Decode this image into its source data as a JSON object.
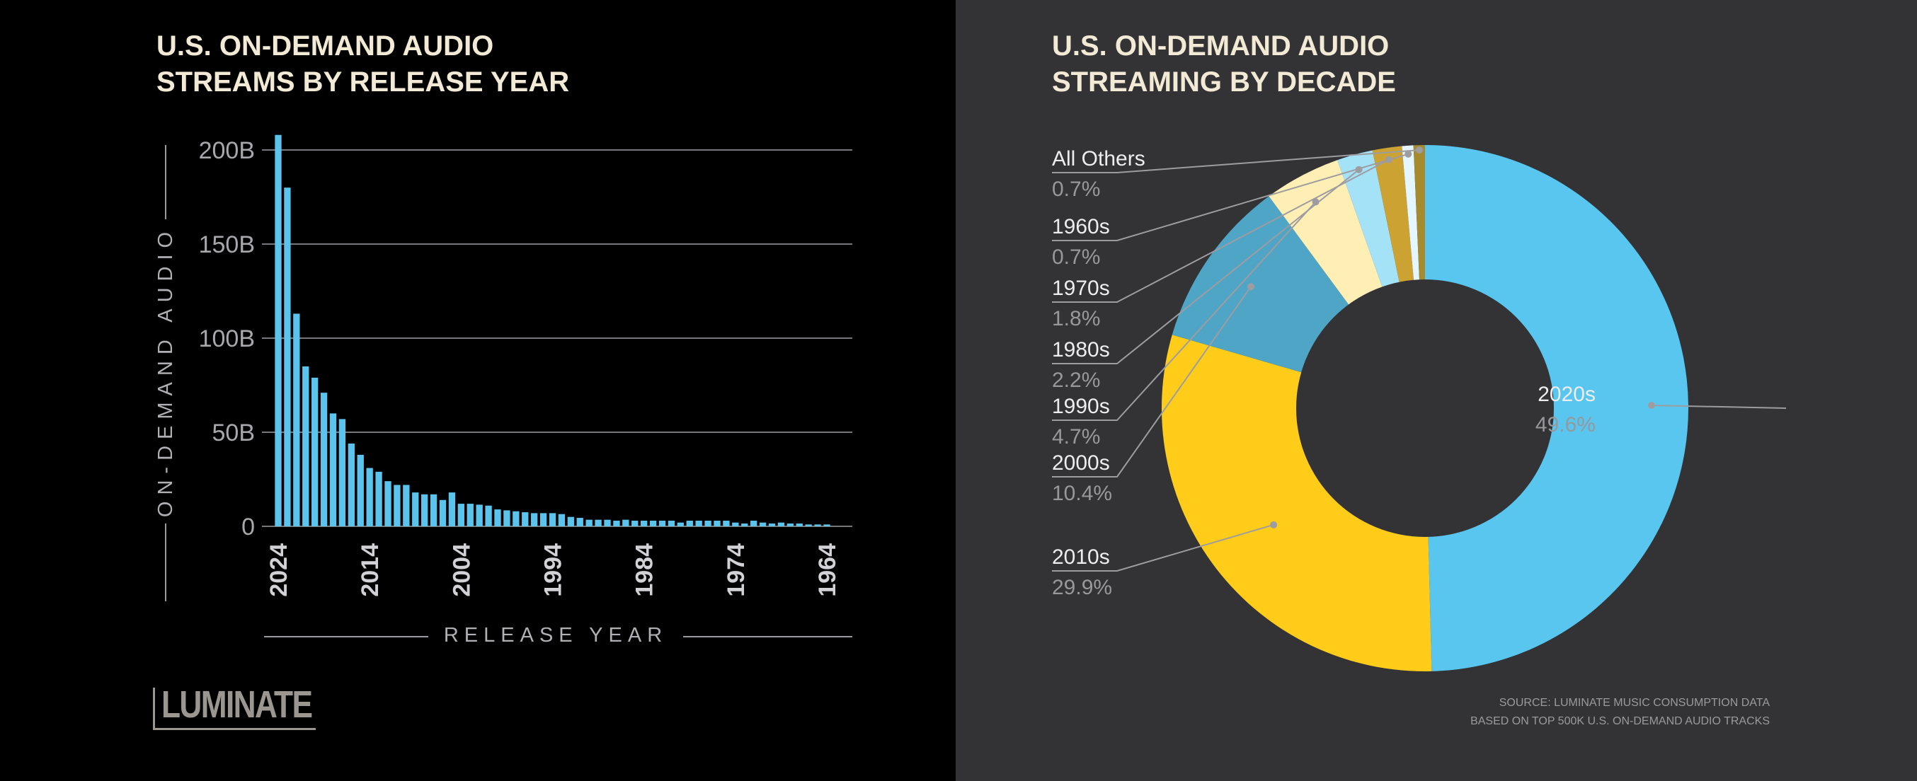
{
  "brand": {
    "logo_text": "LUMINATE"
  },
  "source": {
    "line1": "SOURCE: LUMINATE MUSIC CONSUMPTION DATA",
    "line2": "BASED ON TOP 500K U.S. ON-DEMAND AUDIO TRACKS"
  },
  "colors": {
    "bar": "#5ac4ec",
    "grid": "#77777b",
    "title": "#f3ead6",
    "tick": "#a8a8ac",
    "left_bg": "#000000",
    "right_bg": "#333336"
  },
  "chart_data": [
    {
      "type": "bar",
      "title_lines": [
        "U.S. ON-DEMAND AUDIO",
        "STREAMS BY RELEASE YEAR"
      ],
      "xlabel": "RELEASE YEAR",
      "ylabel": "ON-DEMAND AUDIO",
      "ylim": [
        0,
        200
      ],
      "yticks": [
        0,
        50,
        100,
        150,
        200
      ],
      "ytick_labels": [
        "0",
        "50B",
        "100B",
        "150B",
        "200B"
      ],
      "xtick_labels": [
        "2024",
        "2014",
        "2004",
        "1994",
        "1984",
        "1974",
        "1964"
      ],
      "categories": [
        2024,
        2023,
        2022,
        2021,
        2020,
        2019,
        2018,
        2017,
        2016,
        2015,
        2014,
        2013,
        2012,
        2011,
        2010,
        2009,
        2008,
        2007,
        2006,
        2005,
        2004,
        2003,
        2002,
        2001,
        2000,
        1999,
        1998,
        1997,
        1996,
        1995,
        1994,
        1993,
        1992,
        1991,
        1990,
        1989,
        1988,
        1987,
        1986,
        1985,
        1984,
        1983,
        1982,
        1981,
        1980,
        1979,
        1978,
        1977,
        1976,
        1975,
        1974,
        1973,
        1972,
        1971,
        1970,
        1969,
        1968,
        1967,
        1966,
        1965,
        1964
      ],
      "values": [
        208,
        180,
        113,
        85,
        79,
        71,
        60,
        57,
        44,
        38,
        31,
        29,
        24,
        22,
        22,
        18,
        17,
        17,
        14,
        18,
        12,
        12,
        11.5,
        11,
        9,
        8.5,
        8,
        7.5,
        7,
        7,
        7,
        6.5,
        5,
        4.5,
        3.5,
        3.5,
        3.5,
        3,
        3.5,
        3,
        3,
        3,
        3,
        3,
        2,
        3,
        3,
        3,
        3,
        3,
        2,
        1.5,
        3,
        2,
        1.5,
        2,
        1.5,
        1.5,
        1,
        1,
        1
      ],
      "unit": "billions of streams",
      "grid": true
    },
    {
      "type": "pie",
      "title_lines": [
        "U.S. ON-DEMAND AUDIO",
        "STREAMING BY DECADE"
      ],
      "donut": true,
      "slices": [
        {
          "label": "2020s",
          "value": 49.6,
          "pct_label": "49.6%",
          "color": "#58c6ee"
        },
        {
          "label": "2010s",
          "value": 29.9,
          "pct_label": "29.9%",
          "color": "#ffcc1a"
        },
        {
          "label": "2000s",
          "value": 10.4,
          "pct_label": "10.4%",
          "color": "#4ea5c6"
        },
        {
          "label": "1990s",
          "value": 4.7,
          "pct_label": "4.7%",
          "color": "#ffefb4"
        },
        {
          "label": "1980s",
          "value": 2.2,
          "pct_label": "2.2%",
          "color": "#a4e2f8"
        },
        {
          "label": "1970s",
          "value": 1.8,
          "pct_label": "1.8%",
          "color": "#cca233"
        },
        {
          "label": "1960s",
          "value": 0.7,
          "pct_label": "0.7%",
          "color": "#e4f6ff"
        },
        {
          "label": "All Others",
          "value": 0.7,
          "pct_label": "0.7%",
          "color": "#a58a2e"
        }
      ]
    }
  ]
}
